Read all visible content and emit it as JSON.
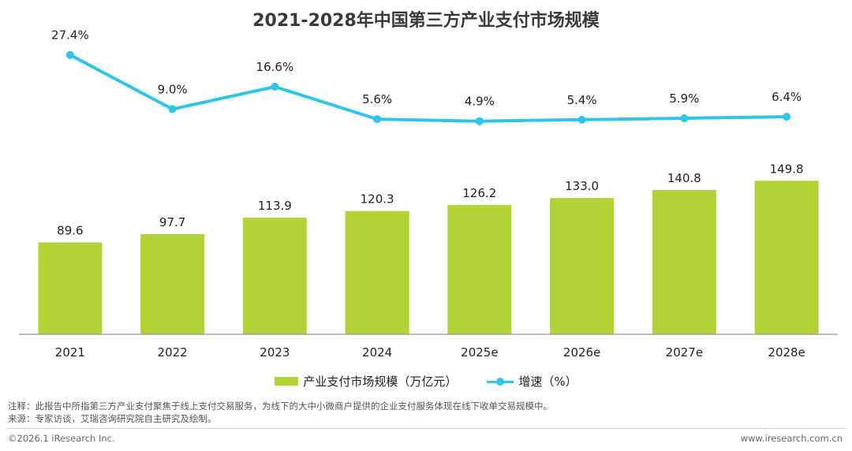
{
  "colors": {
    "bar": "#b2d235",
    "line": "#2ec5ea",
    "axis": "#999999"
  },
  "chart_data": {
    "type": "bar+line",
    "title": "2021-2028年中国第三方产业支付市场规模",
    "categories": [
      "2021",
      "2022",
      "2023",
      "2024",
      "2025e",
      "2026e",
      "2027e",
      "2028e"
    ],
    "series": [
      {
        "name": "产业支付市场规模（万亿元）",
        "type": "bar",
        "values": [
          89.6,
          97.7,
          113.9,
          120.3,
          126.2,
          133.0,
          140.8,
          149.8
        ],
        "labels": [
          "89.6",
          "97.7",
          "113.9",
          "120.3",
          "126.2",
          "133.0",
          "140.8",
          "149.8"
        ]
      },
      {
        "name": "增速（%）",
        "type": "line",
        "values": [
          27.4,
          9.0,
          16.6,
          5.6,
          4.9,
          5.4,
          5.9,
          6.4
        ],
        "labels": [
          "27.4%",
          "9.0%",
          "16.6%",
          "5.6%",
          "4.9%",
          "5.4%",
          "5.9%",
          "6.4%"
        ]
      }
    ],
    "bar_ylim": [
      0,
      167
    ],
    "line_ylim": [
      0,
      30
    ],
    "legend": "bottom-center",
    "grid": false
  },
  "footer": {
    "note": "注释：此报告中所指第三方产业支付聚焦于线上支付交易服务，为线下的大中小微商户提供的企业支付服务体现在线下收单交易规模中。",
    "source": "来源：专家访谈，艾瑞咨询研究院自主研究及绘制。",
    "copyright": "©2026.1 iResearch Inc.",
    "website": "www.iresearch.com.cn"
  }
}
